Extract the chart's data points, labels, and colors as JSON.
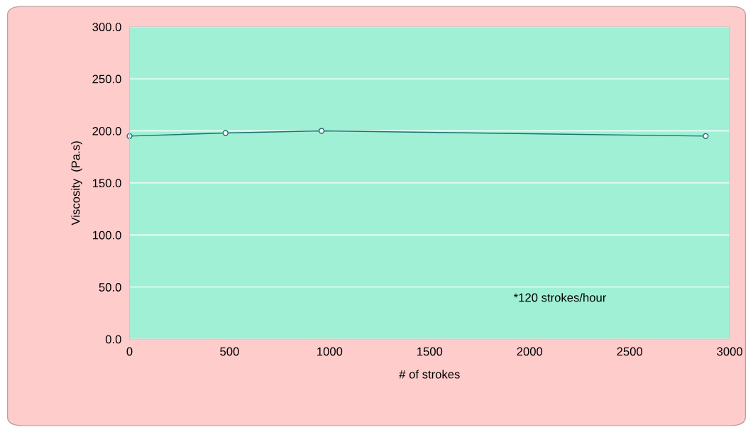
{
  "chart_data": {
    "type": "line",
    "xlabel": "# of strokes",
    "ylabel": "Viscosity  (Pa.s)",
    "x": [
      0,
      480,
      960,
      2880
    ],
    "series": [
      {
        "color": "#1f6f6f",
        "values": [
          195,
          198,
          200,
          195
        ]
      }
    ],
    "xlim": [
      0,
      3000
    ],
    "xticks": [
      0,
      500,
      1000,
      1500,
      2000,
      2500,
      3000
    ],
    "ylim": [
      0,
      300
    ],
    "yticks": [
      {
        "value": 0,
        "label": "0.0"
      },
      {
        "value": 50,
        "label": "50.0"
      },
      {
        "value": 100,
        "label": "100.0"
      },
      {
        "value": 150,
        "label": "150.0"
      },
      {
        "value": 200,
        "label": "200.0"
      },
      {
        "value": 250,
        "label": "250.0"
      },
      {
        "value": 300,
        "label": "300.0"
      }
    ],
    "grid": "y",
    "marker": "circle",
    "line_style": "solid",
    "annotations": [
      "*120 strokes/hour"
    ]
  }
}
